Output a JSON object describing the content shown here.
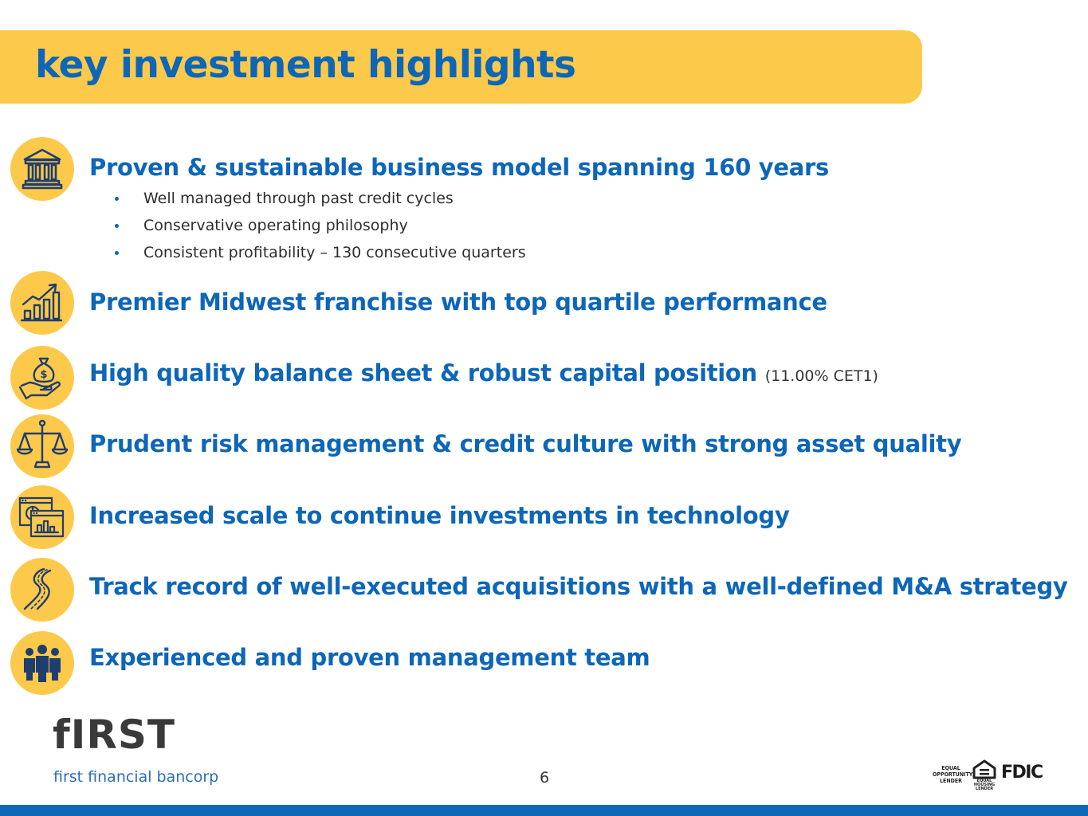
{
  "title": "key investment highlights",
  "highlights": [
    {
      "icon": "bank-building-icon",
      "heading": "Proven & sustainable business model spanning 160 years",
      "note": ""
    },
    {
      "icon": "growth-chart-icon",
      "heading": "Premier Midwest franchise with top quartile performance",
      "note": ""
    },
    {
      "icon": "money-bag-hand-icon",
      "heading": "High quality balance sheet & robust capital position",
      "note": "(11.00% CET1)"
    },
    {
      "icon": "balance-scale-icon",
      "heading": "Prudent risk management & credit culture with strong asset quality",
      "note": ""
    },
    {
      "icon": "dashboard-windows-icon",
      "heading": "Increased scale to continue investments in technology",
      "note": ""
    },
    {
      "icon": "winding-road-icon",
      "heading": "Track record of well-executed acquisitions with a well-defined M&A strategy",
      "note": ""
    },
    {
      "icon": "team-people-icon",
      "heading": "Experienced and proven management team",
      "note": ""
    }
  ],
  "bullets": [
    "Well managed through past credit cycles",
    "Conservative operating philosophy",
    "Consistent profitability – 130 consecutive quarters"
  ],
  "footer": {
    "logo_text": "fIRST",
    "logo_tagline": "first financial bancorp",
    "page_number": "6",
    "equal_opportunity_lines": [
      "EQUAL",
      "OPPORTUNITY",
      "LENDER"
    ],
    "equal_housing_label": "EQUAL HOUSING LENDER",
    "fdic": "FDIC"
  },
  "colors": {
    "accent_yellow": "#fdc94a",
    "brand_blue": "#0d66b8",
    "icon_navy": "#1f3e70"
  }
}
